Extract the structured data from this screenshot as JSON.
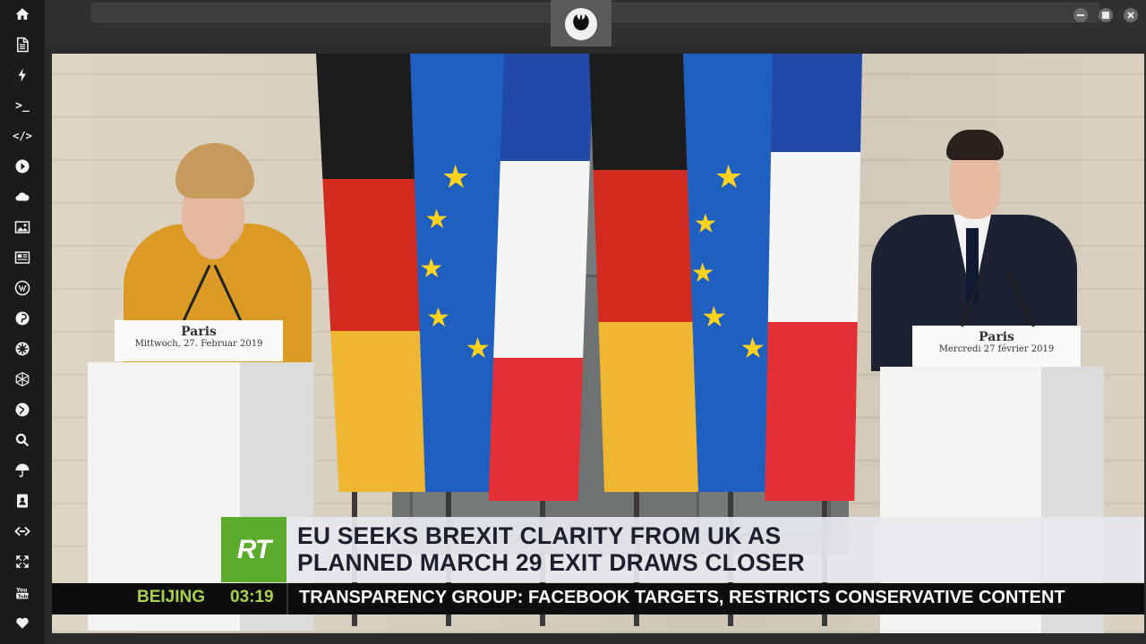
{
  "sidebar": {
    "icons": [
      "home-icon",
      "document-icon",
      "flash-icon",
      "terminal-icon",
      "code-icon",
      "play-icon",
      "cloud-icon",
      "image-icon",
      "newspaper-icon",
      "wordpress-icon",
      "pinterest-icon",
      "settings-wheel-icon",
      "network-icon",
      "globe-icon",
      "search-icon",
      "umbrella-icon",
      "contact-card-icon",
      "code-fork-icon",
      "expand-icon",
      "youtube-icon",
      "heart-icon"
    ],
    "terminal_glyph": ">_",
    "code_glyph": "</>"
  },
  "window": {
    "controls": [
      "minimize-icon",
      "maximize-icon",
      "close-icon"
    ]
  },
  "video": {
    "left_placard": {
      "city": "Paris",
      "date": "Mittwoch, 27. Februar 2019"
    },
    "right_placard": {
      "city": "Paris",
      "date": "Mercredi 27 février 2019"
    },
    "channel_logo": "RT",
    "headline": "EU SEEKS BREXIT CLARITY FROM UK AS\nPLANNED MARCH 29 EXIT DRAWS CLOSER",
    "ticker": {
      "city": "BEIJING",
      "time": "03:19",
      "news": "TRANSPARENCY GROUP: FACEBOOK TARGETS, RESTRICTS CONSERVATIVE CONTENT"
    }
  },
  "colors": {
    "rail_bg": "#1b1b1b",
    "rt_green": "#5cab2d",
    "ticker_green": "#a8d24a"
  }
}
